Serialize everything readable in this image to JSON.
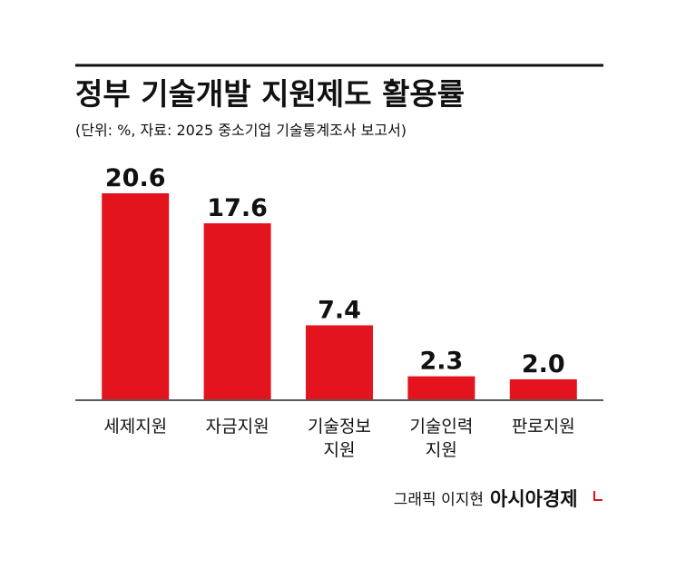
{
  "chart_data": {
    "type": "bar",
    "title": "정부 기술개발 지원제도 활용률",
    "subtitle": "(단위: %, 자료: 2025 중소기업 기술통계조사 보고서)",
    "categories": [
      "세제지원",
      "자금지원",
      "기술정보\n지원",
      "기술인력\n지원",
      "판로지원"
    ],
    "values": [
      20.6,
      17.6,
      7.4,
      2.3,
      2.0
    ],
    "value_labels": [
      "20.6",
      "17.6",
      "7.4",
      "2.3",
      "2.0"
    ],
    "color": "#e3141d",
    "credit": "그래픽 이지현",
    "source": "아시아경제"
  }
}
